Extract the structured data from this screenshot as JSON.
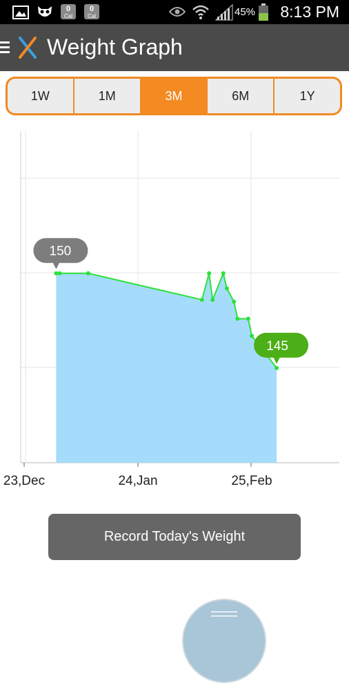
{
  "status_bar": {
    "cal_badges": [
      {
        "count": "0",
        "label": "Cal"
      },
      {
        "count": "0",
        "label": "Cal"
      }
    ],
    "battery": "45%",
    "time": "8:13 PM"
  },
  "app_bar": {
    "title": "Weight Graph"
  },
  "range_tabs": [
    {
      "label": "1W",
      "active": false
    },
    {
      "label": "1M",
      "active": false
    },
    {
      "label": "3M",
      "active": true
    },
    {
      "label": "6M",
      "active": false
    },
    {
      "label": "1Y",
      "active": false
    }
  ],
  "chart_data": {
    "type": "area",
    "x_tick_labels": [
      "23,Dec",
      "24,Jan",
      "25,Feb"
    ],
    "x_axis_days_from_23_dec": [
      0,
      32,
      64
    ],
    "ylim": [
      140,
      157.5
    ],
    "points": [
      {
        "day": 9,
        "weight": 150
      },
      {
        "day": 10,
        "weight": 150
      },
      {
        "day": 18,
        "weight": 150
      },
      {
        "day": 50,
        "weight": 148.6
      },
      {
        "day": 52,
        "weight": 150
      },
      {
        "day": 53,
        "weight": 148.6
      },
      {
        "day": 56,
        "weight": 150
      },
      {
        "day": 57,
        "weight": 149.2
      },
      {
        "day": 59,
        "weight": 148.5
      },
      {
        "day": 60,
        "weight": 147.6
      },
      {
        "day": 63,
        "weight": 147.6
      },
      {
        "day": 64,
        "weight": 146.7
      },
      {
        "day": 71,
        "weight": 145
      }
    ],
    "callouts": [
      {
        "label": "150",
        "color": "#7d7d7d"
      },
      {
        "label": "145",
        "color": "#4caf17"
      }
    ],
    "line_color": "#2de03c",
    "fill_color": "#a6dcfb",
    "grid": true
  },
  "record_button": {
    "label": "Record Today's Weight"
  }
}
